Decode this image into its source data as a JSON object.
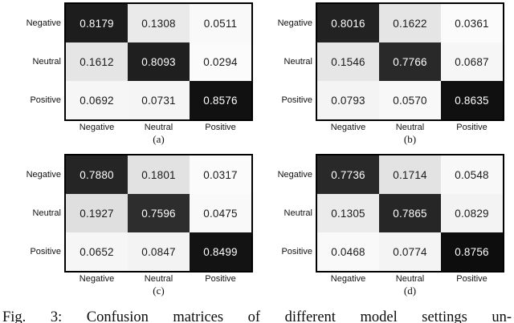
{
  "figure": {
    "caption": "Fig. 3: Confusion matrices of different model settings un-"
  },
  "colors": {
    "background": "#ffffff",
    "grid_border": "#000000",
    "cell_text_dark": "#1a1a1a",
    "cell_text_light": "#ffffff",
    "label_text": "#111111"
  },
  "chart_data": [
    {
      "type": "heatmap",
      "panel_label": "(a)",
      "x_categories": [
        "Negative",
        "Neutral",
        "Positive"
      ],
      "y_categories": [
        "Negative",
        "Neutral",
        "Positive"
      ],
      "values": [
        [
          0.8179,
          0.1308,
          0.0511
        ],
        [
          0.1612,
          0.8093,
          0.0294
        ],
        [
          0.0692,
          0.0731,
          0.8576
        ]
      ],
      "colormap": "greys-dark-is-high",
      "value_format": "4-decimals",
      "legend": "none",
      "grid": "off"
    },
    {
      "type": "heatmap",
      "panel_label": "(b)",
      "x_categories": [
        "Negative",
        "Neutral",
        "Positive"
      ],
      "y_categories": [
        "Negative",
        "Neutral",
        "Positive"
      ],
      "values": [
        [
          0.8016,
          0.1622,
          0.0361
        ],
        [
          0.1546,
          0.7766,
          0.0687
        ],
        [
          0.0793,
          0.057,
          0.8635
        ]
      ],
      "colormap": "greys-dark-is-high",
      "value_format": "4-decimals",
      "legend": "none",
      "grid": "off"
    },
    {
      "type": "heatmap",
      "panel_label": "(c)",
      "x_categories": [
        "Negative",
        "Neutral",
        "Positive"
      ],
      "y_categories": [
        "Negative",
        "Neutral",
        "Positive"
      ],
      "values": [
        [
          0.788,
          0.1801,
          0.0317
        ],
        [
          0.1927,
          0.7596,
          0.0475
        ],
        [
          0.0652,
          0.0847,
          0.8499
        ]
      ],
      "colormap": "greys-dark-is-high",
      "value_format": "4-decimals",
      "legend": "none",
      "grid": "off"
    },
    {
      "type": "heatmap",
      "panel_label": "(d)",
      "x_categories": [
        "Negative",
        "Neutral",
        "Positive"
      ],
      "y_categories": [
        "Negative",
        "Neutral",
        "Positive"
      ],
      "values": [
        [
          0.7736,
          0.1714,
          0.0548
        ],
        [
          0.1305,
          0.7865,
          0.0829
        ],
        [
          0.0468,
          0.0774,
          0.8756
        ]
      ],
      "colormap": "greys-dark-is-high",
      "value_format": "4-decimals",
      "legend": "none",
      "grid": "off"
    }
  ]
}
